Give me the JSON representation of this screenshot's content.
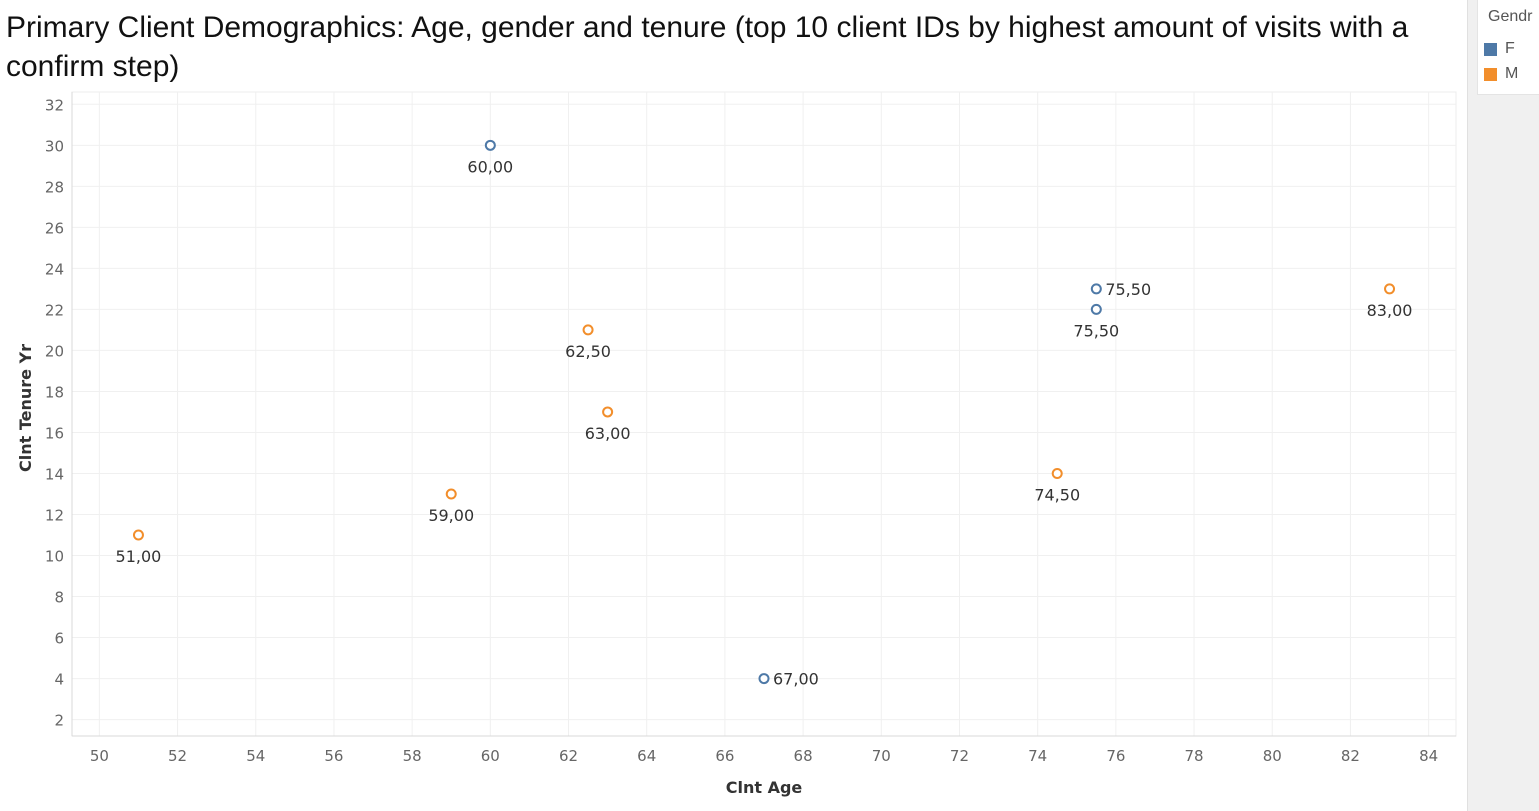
{
  "chart_data": {
    "type": "scatter",
    "title": "Primary Client Demographics: Age, gender and tenure (top 10 client IDs by highest amount of visits with a confirm step)",
    "xlabel": "Clnt Age",
    "ylabel": "Clnt Tenure Yr",
    "xlim": [
      49.3,
      84.7
    ],
    "ylim": [
      1.2,
      32.6
    ],
    "xticks": [
      50,
      52,
      54,
      56,
      58,
      60,
      62,
      64,
      66,
      68,
      70,
      72,
      74,
      76,
      78,
      80,
      82,
      84
    ],
    "yticks": [
      2,
      4,
      6,
      8,
      10,
      12,
      14,
      16,
      18,
      20,
      22,
      24,
      26,
      28,
      30,
      32
    ],
    "grid": true,
    "legend": {
      "title": "Gendr",
      "position": "top-right",
      "entries": [
        {
          "name": "F",
          "color": "#4e79a7"
        },
        {
          "name": "M",
          "color": "#f28e2b"
        }
      ]
    },
    "marker": "hollow-circle",
    "points": [
      {
        "x": 60.0,
        "y": 30,
        "series": "F",
        "label": "60,00",
        "label_pos": "below"
      },
      {
        "x": 75.5,
        "y": 23,
        "series": "F",
        "label": "75,50",
        "label_pos": "right"
      },
      {
        "x": 75.5,
        "y": 22,
        "series": "F",
        "label": "75,50",
        "label_pos": "below"
      },
      {
        "x": 67.0,
        "y": 4,
        "series": "F",
        "label": "67,00",
        "label_pos": "right"
      },
      {
        "x": 83.0,
        "y": 23,
        "series": "M",
        "label": "83,00",
        "label_pos": "below"
      },
      {
        "x": 62.5,
        "y": 21,
        "series": "M",
        "label": "62,50",
        "label_pos": "below"
      },
      {
        "x": 63.0,
        "y": 17,
        "series": "M",
        "label": "63,00",
        "label_pos": "below"
      },
      {
        "x": 74.5,
        "y": 14,
        "series": "M",
        "label": "74,50",
        "label_pos": "below"
      },
      {
        "x": 59.0,
        "y": 13,
        "series": "M",
        "label": "59,00",
        "label_pos": "below"
      },
      {
        "x": 51.0,
        "y": 11,
        "series": "M",
        "label": "51,00",
        "label_pos": "below"
      }
    ]
  }
}
